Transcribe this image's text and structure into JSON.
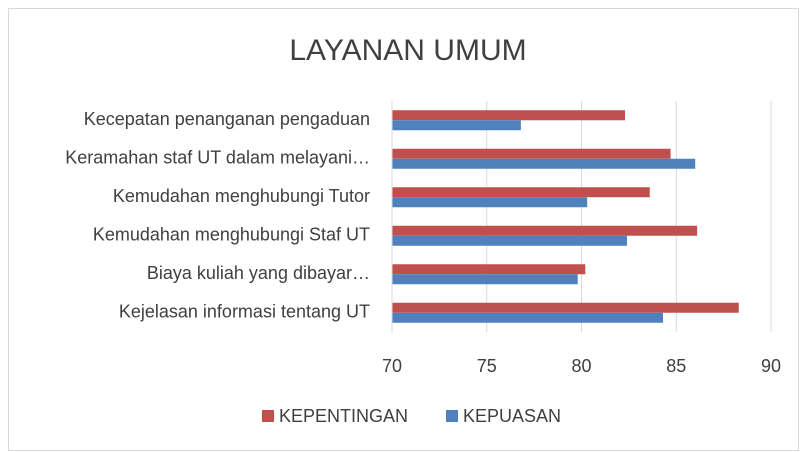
{
  "chart_data": {
    "type": "bar",
    "orientation": "horizontal",
    "title": "LAYANAN UMUM",
    "categories": [
      "Kecepatan penanganan pengaduan",
      "Keramahan staf UT dalam melayani…",
      "Kemudahan menghubungi Tutor",
      "Kemudahan menghubungi Staf UT",
      "Biaya kuliah yang dibayar…",
      "Kejelasan informasi tentang UT"
    ],
    "series": [
      {
        "name": "KEPENTINGAN",
        "color": "#c0504d",
        "values": [
          82.3,
          84.7,
          83.6,
          86.1,
          80.2,
          88.3
        ]
      },
      {
        "name": "KEPUASAN",
        "color": "#4f81bd",
        "values": [
          76.8,
          86.0,
          80.3,
          82.4,
          79.8,
          84.3
        ]
      }
    ],
    "xlim": [
      70,
      90
    ],
    "xticks": [
      70,
      75,
      80,
      85,
      90
    ],
    "grid": true,
    "legend": "bottom"
  }
}
